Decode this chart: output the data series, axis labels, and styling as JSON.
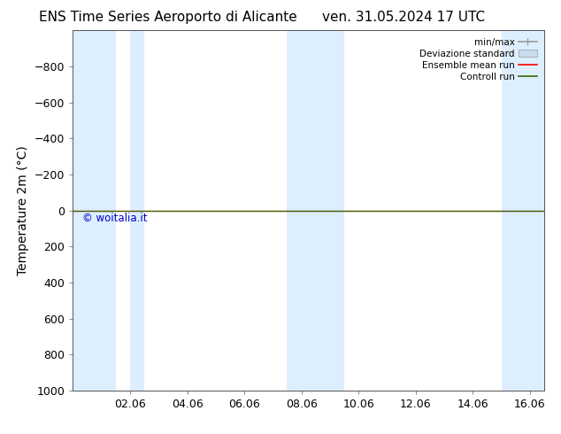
{
  "title_left": "ENS Time Series Aeroporto di Alicante",
  "title_right": "ven. 31.05.2024 17 UTC",
  "ylabel": "Temperature 2m (°C)",
  "ylim_min": -1000,
  "ylim_max": 1000,
  "yticks": [
    -800,
    -600,
    -400,
    -200,
    0,
    200,
    400,
    600,
    800,
    1000
  ],
  "xlim_min": 0.0,
  "xlim_max": 16.5,
  "xtick_positions": [
    2,
    4,
    6,
    8,
    10,
    12,
    14,
    16
  ],
  "xtick_labels": [
    "02.06",
    "04.06",
    "06.06",
    "08.06",
    "10.06",
    "12.06",
    "14.06",
    "16.06"
  ],
  "shade_regions": [
    [
      0.0,
      1.5
    ],
    [
      2.0,
      2.5
    ],
    [
      7.5,
      9.5
    ],
    [
      15.0,
      16.5
    ]
  ],
  "shade_color": "#ddeeff",
  "line_red_color": "#ff0000",
  "line_green_color": "#336600",
  "watermark_text": "© woitalia.it",
  "watermark_color": "#0000cc",
  "background_color": "#ffffff",
  "legend_minmax_color": "#999999",
  "legend_std_color": "#c8ddf0",
  "title_fontsize": 11,
  "axis_fontsize": 10,
  "tick_fontsize": 9
}
